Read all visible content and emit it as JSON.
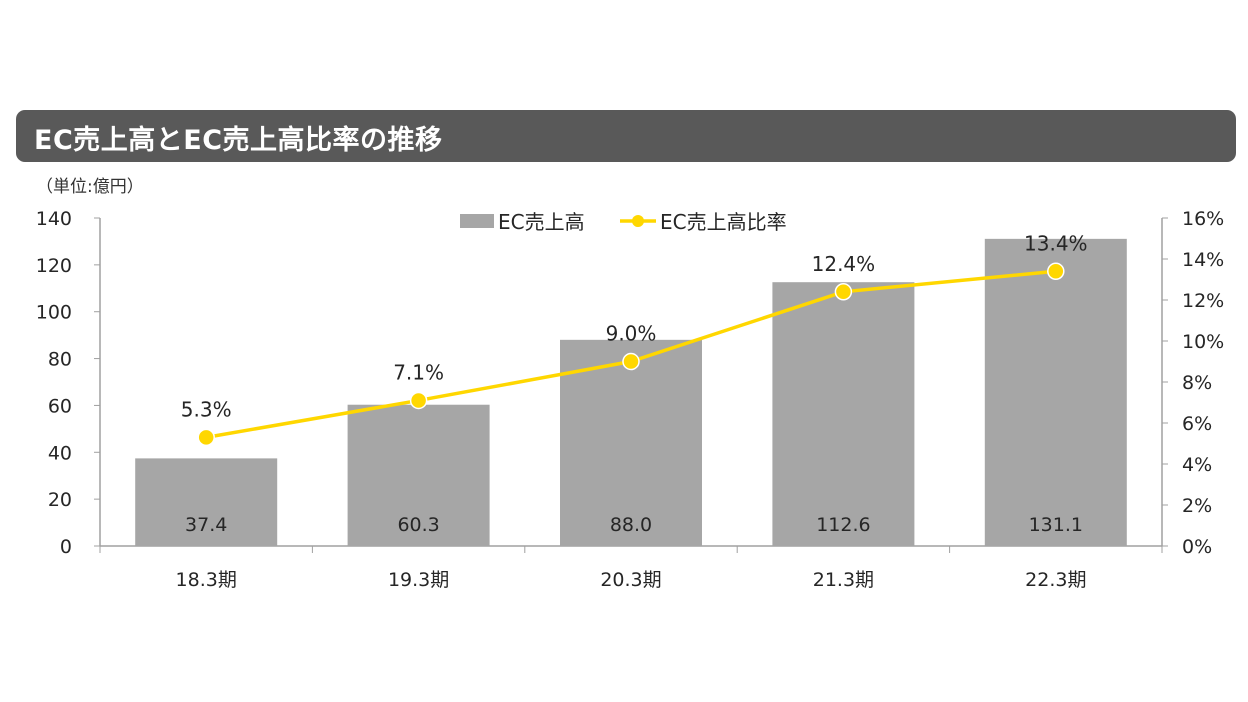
{
  "title": "EC売上高とEC売上高比率の推移",
  "unit_label": "（単位:億円）",
  "chart_data": {
    "type": "bar+line",
    "categories": [
      "18.3期",
      "19.3期",
      "20.3期",
      "21.3期",
      "22.3期"
    ],
    "series": [
      {
        "name": "EC売上高",
        "type": "bar",
        "axis": "left",
        "values": [
          37.4,
          60.3,
          88.0,
          112.6,
          131.1
        ],
        "labels": [
          "37.4",
          "60.3",
          "88.0",
          "112.6",
          "131.1"
        ],
        "color": "#a6a6a6"
      },
      {
        "name": "EC売上高比率",
        "type": "line",
        "axis": "right",
        "values": [
          5.3,
          7.1,
          9.0,
          12.4,
          13.4
        ],
        "labels": [
          "5.3%",
          "7.1%",
          "9.0%",
          "12.4%",
          "13.4%"
        ],
        "color": "#ffd700"
      }
    ],
    "y_left": {
      "range": [
        0,
        140
      ],
      "ticks": [
        "0",
        "20",
        "40",
        "60",
        "80",
        "100",
        "120",
        "140"
      ]
    },
    "y_right": {
      "range": [
        0,
        16
      ],
      "ticks": [
        "0%",
        "2%",
        "4%",
        "6%",
        "8%",
        "10%",
        "12%",
        "14%",
        "16%"
      ]
    },
    "legend_placement": "top-center",
    "grid": false
  }
}
